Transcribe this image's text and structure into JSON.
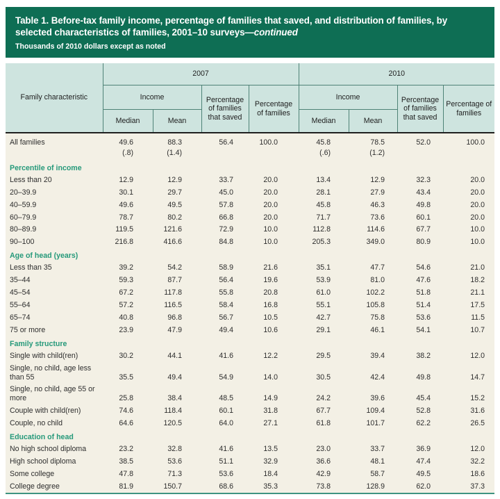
{
  "title_bar": {
    "title_main": "Table 1. Before-tax family income, percentage of families that saved, and distribution of families, by selected characteristics of families, 2001–10 surveys—",
    "title_continued": "continued",
    "subtitle": "Thousands of 2010 dollars except as noted"
  },
  "header": {
    "family_characteristic": "Family characteristic",
    "year_groups": [
      "2007",
      "2010"
    ],
    "income_label": "Income",
    "median_label": "Median",
    "mean_label": "Mean",
    "pct_saved_label": "Percentage of families that saved",
    "pct_families_label": "Percentage of families"
  },
  "colors": {
    "title_bar_green": "#0E6E54",
    "header_teal": "#CEE4DF",
    "header_border": "#4E8276",
    "heavy_rule": "#1F1F1F",
    "body_cream": "#F3F0E5",
    "section_green": "#26997A",
    "bottom_rule": "#3E9480"
  },
  "rows": [
    {
      "type": "data",
      "label": "All families",
      "values": [
        "49.6",
        "88.3",
        "56.4",
        "100.0",
        "45.8",
        "78.5",
        "52.0",
        "100.0"
      ]
    },
    {
      "type": "se",
      "label": "",
      "values": [
        "(.8)",
        "(1.4)",
        "",
        "",
        "(.6)",
        "(1.2)",
        "",
        ""
      ]
    },
    {
      "type": "section",
      "label": "Percentile of income",
      "values": []
    },
    {
      "type": "data",
      "label": "Less than 20",
      "values": [
        "12.9",
        "12.9",
        "33.7",
        "20.0",
        "13.4",
        "12.9",
        "32.3",
        "20.0"
      ]
    },
    {
      "type": "data",
      "label": "20–39.9",
      "values": [
        "30.1",
        "29.7",
        "45.0",
        "20.0",
        "28.1",
        "27.9",
        "43.4",
        "20.0"
      ]
    },
    {
      "type": "data",
      "label": "40–59.9",
      "values": [
        "49.6",
        "49.5",
        "57.8",
        "20.0",
        "45.8",
        "46.3",
        "49.8",
        "20.0"
      ]
    },
    {
      "type": "data",
      "label": "60–79.9",
      "values": [
        "78.7",
        "80.2",
        "66.8",
        "20.0",
        "71.7",
        "73.6",
        "60.1",
        "20.0"
      ]
    },
    {
      "type": "data",
      "label": "80–89.9",
      "values": [
        "119.5",
        "121.6",
        "72.9",
        "10.0",
        "112.8",
        "114.6",
        "67.7",
        "10.0"
      ]
    },
    {
      "type": "data",
      "label": "90–100",
      "values": [
        "216.8",
        "416.6",
        "84.8",
        "10.0",
        "205.3",
        "349.0",
        "80.9",
        "10.0"
      ]
    },
    {
      "type": "section",
      "label": "Age of head (years)",
      "values": []
    },
    {
      "type": "data",
      "label": "Less than 35",
      "values": [
        "39.2",
        "54.2",
        "58.9",
        "21.6",
        "35.1",
        "47.7",
        "54.6",
        "21.0"
      ]
    },
    {
      "type": "data",
      "label": "35–44",
      "values": [
        "59.3",
        "87.7",
        "56.4",
        "19.6",
        "53.9",
        "81.0",
        "47.6",
        "18.2"
      ]
    },
    {
      "type": "data",
      "label": "45–54",
      "values": [
        "67.2",
        "117.8",
        "55.8",
        "20.8",
        "61.0",
        "102.2",
        "51.8",
        "21.1"
      ]
    },
    {
      "type": "data",
      "label": "55–64",
      "values": [
        "57.2",
        "116.5",
        "58.4",
        "16.8",
        "55.1",
        "105.8",
        "51.4",
        "17.5"
      ]
    },
    {
      "type": "data",
      "label": "65–74",
      "values": [
        "40.8",
        "96.8",
        "56.7",
        "10.5",
        "42.7",
        "75.8",
        "53.6",
        "11.5"
      ]
    },
    {
      "type": "data",
      "label": "75 or more",
      "values": [
        "23.9",
        "47.9",
        "49.4",
        "10.6",
        "29.1",
        "46.1",
        "54.1",
        "10.7"
      ]
    },
    {
      "type": "section",
      "label": "Family structure",
      "values": []
    },
    {
      "type": "data",
      "label": "Single with child(ren)",
      "values": [
        "30.2",
        "44.1",
        "41.6",
        "12.2",
        "29.5",
        "39.4",
        "38.2",
        "12.0"
      ]
    },
    {
      "type": "data",
      "label": "Single, no child, age less than 55",
      "values": [
        "35.5",
        "49.4",
        "54.9",
        "14.0",
        "30.5",
        "42.4",
        "49.8",
        "14.7"
      ]
    },
    {
      "type": "data",
      "label": "Single, no child, age 55 or more",
      "values": [
        "25.8",
        "38.4",
        "48.5",
        "14.9",
        "24.2",
        "39.6",
        "45.4",
        "15.2"
      ]
    },
    {
      "type": "data",
      "label": "Couple with child(ren)",
      "values": [
        "74.6",
        "118.4",
        "60.1",
        "31.8",
        "67.7",
        "109.4",
        "52.8",
        "31.6"
      ]
    },
    {
      "type": "data",
      "label": "Couple, no child",
      "values": [
        "64.6",
        "120.5",
        "64.0",
        "27.1",
        "61.8",
        "101.7",
        "62.2",
        "26.5"
      ]
    },
    {
      "type": "section",
      "label": "Education of head",
      "values": []
    },
    {
      "type": "data",
      "label": "No high school diploma",
      "values": [
        "23.2",
        "32.8",
        "41.6",
        "13.5",
        "23.0",
        "33.7",
        "36.9",
        "12.0"
      ]
    },
    {
      "type": "data",
      "label": "High school diploma",
      "values": [
        "38.5",
        "53.6",
        "51.1",
        "32.9",
        "36.6",
        "48.1",
        "47.4",
        "32.2"
      ]
    },
    {
      "type": "data",
      "label": "Some college",
      "values": [
        "47.8",
        "71.3",
        "53.6",
        "18.4",
        "42.9",
        "58.7",
        "49.5",
        "18.6"
      ]
    },
    {
      "type": "data",
      "label": "College degree",
      "values": [
        "81.9",
        "150.7",
        "68.6",
        "35.3",
        "73.8",
        "128.9",
        "62.0",
        "37.3"
      ]
    }
  ]
}
